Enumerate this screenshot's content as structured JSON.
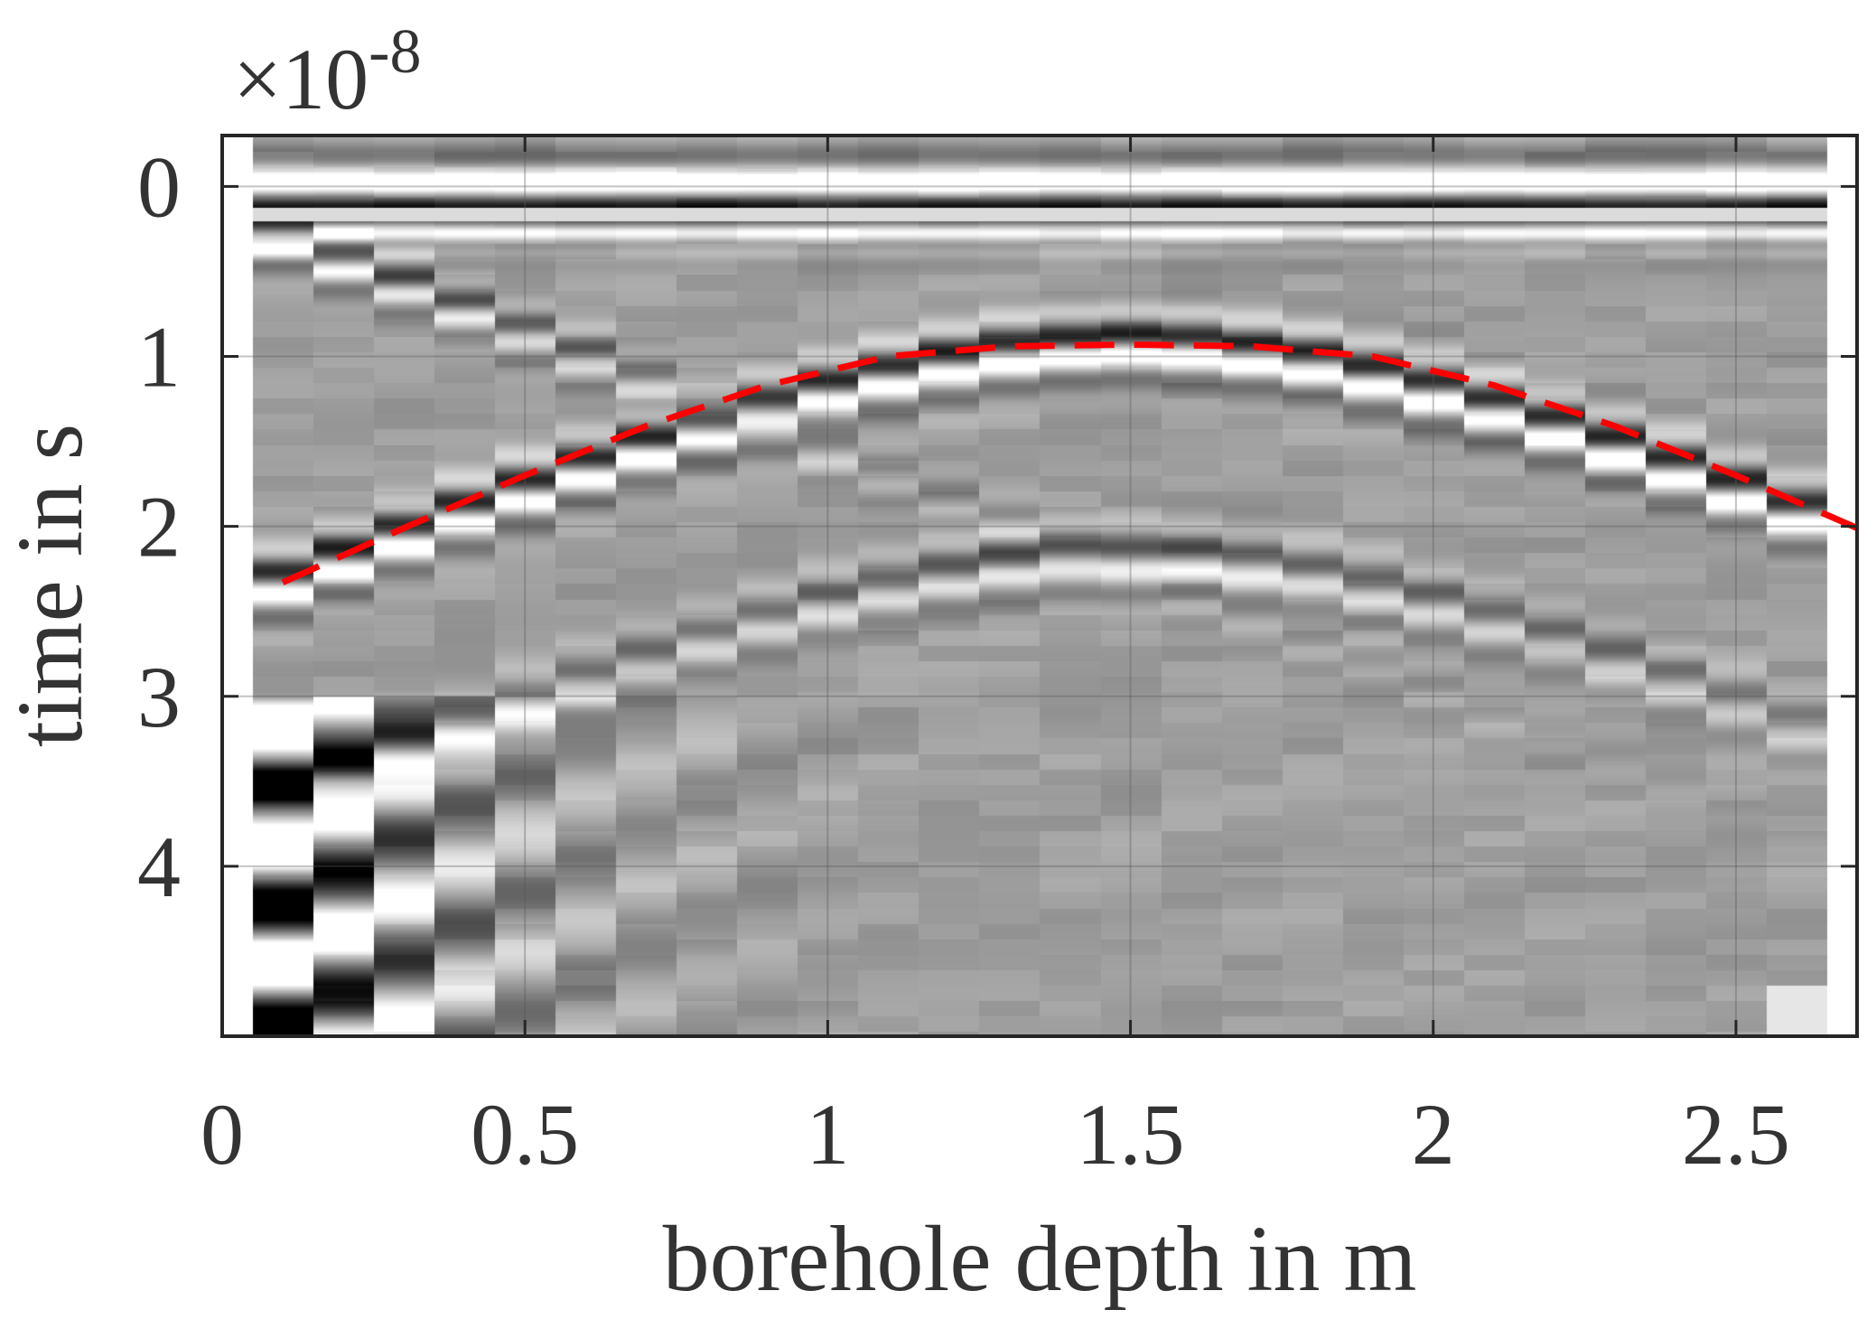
{
  "chart_data": {
    "type": "heatmap",
    "title": "",
    "xlabel": "borehole depth in m",
    "ylabel": "time in s",
    "y_exponent_prefix": "×10",
    "y_exponent": "-8",
    "xlim": [
      0,
      2.7
    ],
    "ylim": [
      -0.3,
      5.0
    ],
    "y_direction": "reversed",
    "grid": true,
    "colormap": "gray",
    "x_ticks": [
      0,
      0.5,
      1,
      1.5,
      2,
      2.5
    ],
    "x_tick_labels": [
      "0",
      "0.5",
      "1",
      "1.5",
      "2",
      "2.5"
    ],
    "y_ticks": [
      0,
      1,
      2,
      3,
      4
    ],
    "y_tick_labels": [
      "0",
      "1",
      "2",
      "3",
      "4"
    ],
    "trace_spacing": 0.1,
    "trace_start": 0.05,
    "trace_end": 2.65,
    "series": [
      {
        "name": "hyperbola fit",
        "style": "dashed",
        "color": "#ff0000",
        "apex_depth": 1.5,
        "apex_time": 0.93,
        "x": [
          0.1,
          0.3,
          0.5,
          0.7,
          0.9,
          1.1,
          1.3,
          1.5,
          1.7,
          1.9,
          2.1,
          2.3,
          2.5,
          2.7
        ],
        "y": [
          2.33,
          2.01,
          1.7,
          1.41,
          1.17,
          1.0,
          0.94,
          0.93,
          0.94,
          1.0,
          1.17,
          1.41,
          1.7,
          2.01
        ]
      }
    ],
    "features": [
      {
        "name": "direct wave band",
        "time": 0.0
      },
      {
        "name": "primary reflection",
        "apex_time": 0.95
      },
      {
        "name": "secondary reflection",
        "apex_time": 2.2
      }
    ]
  }
}
